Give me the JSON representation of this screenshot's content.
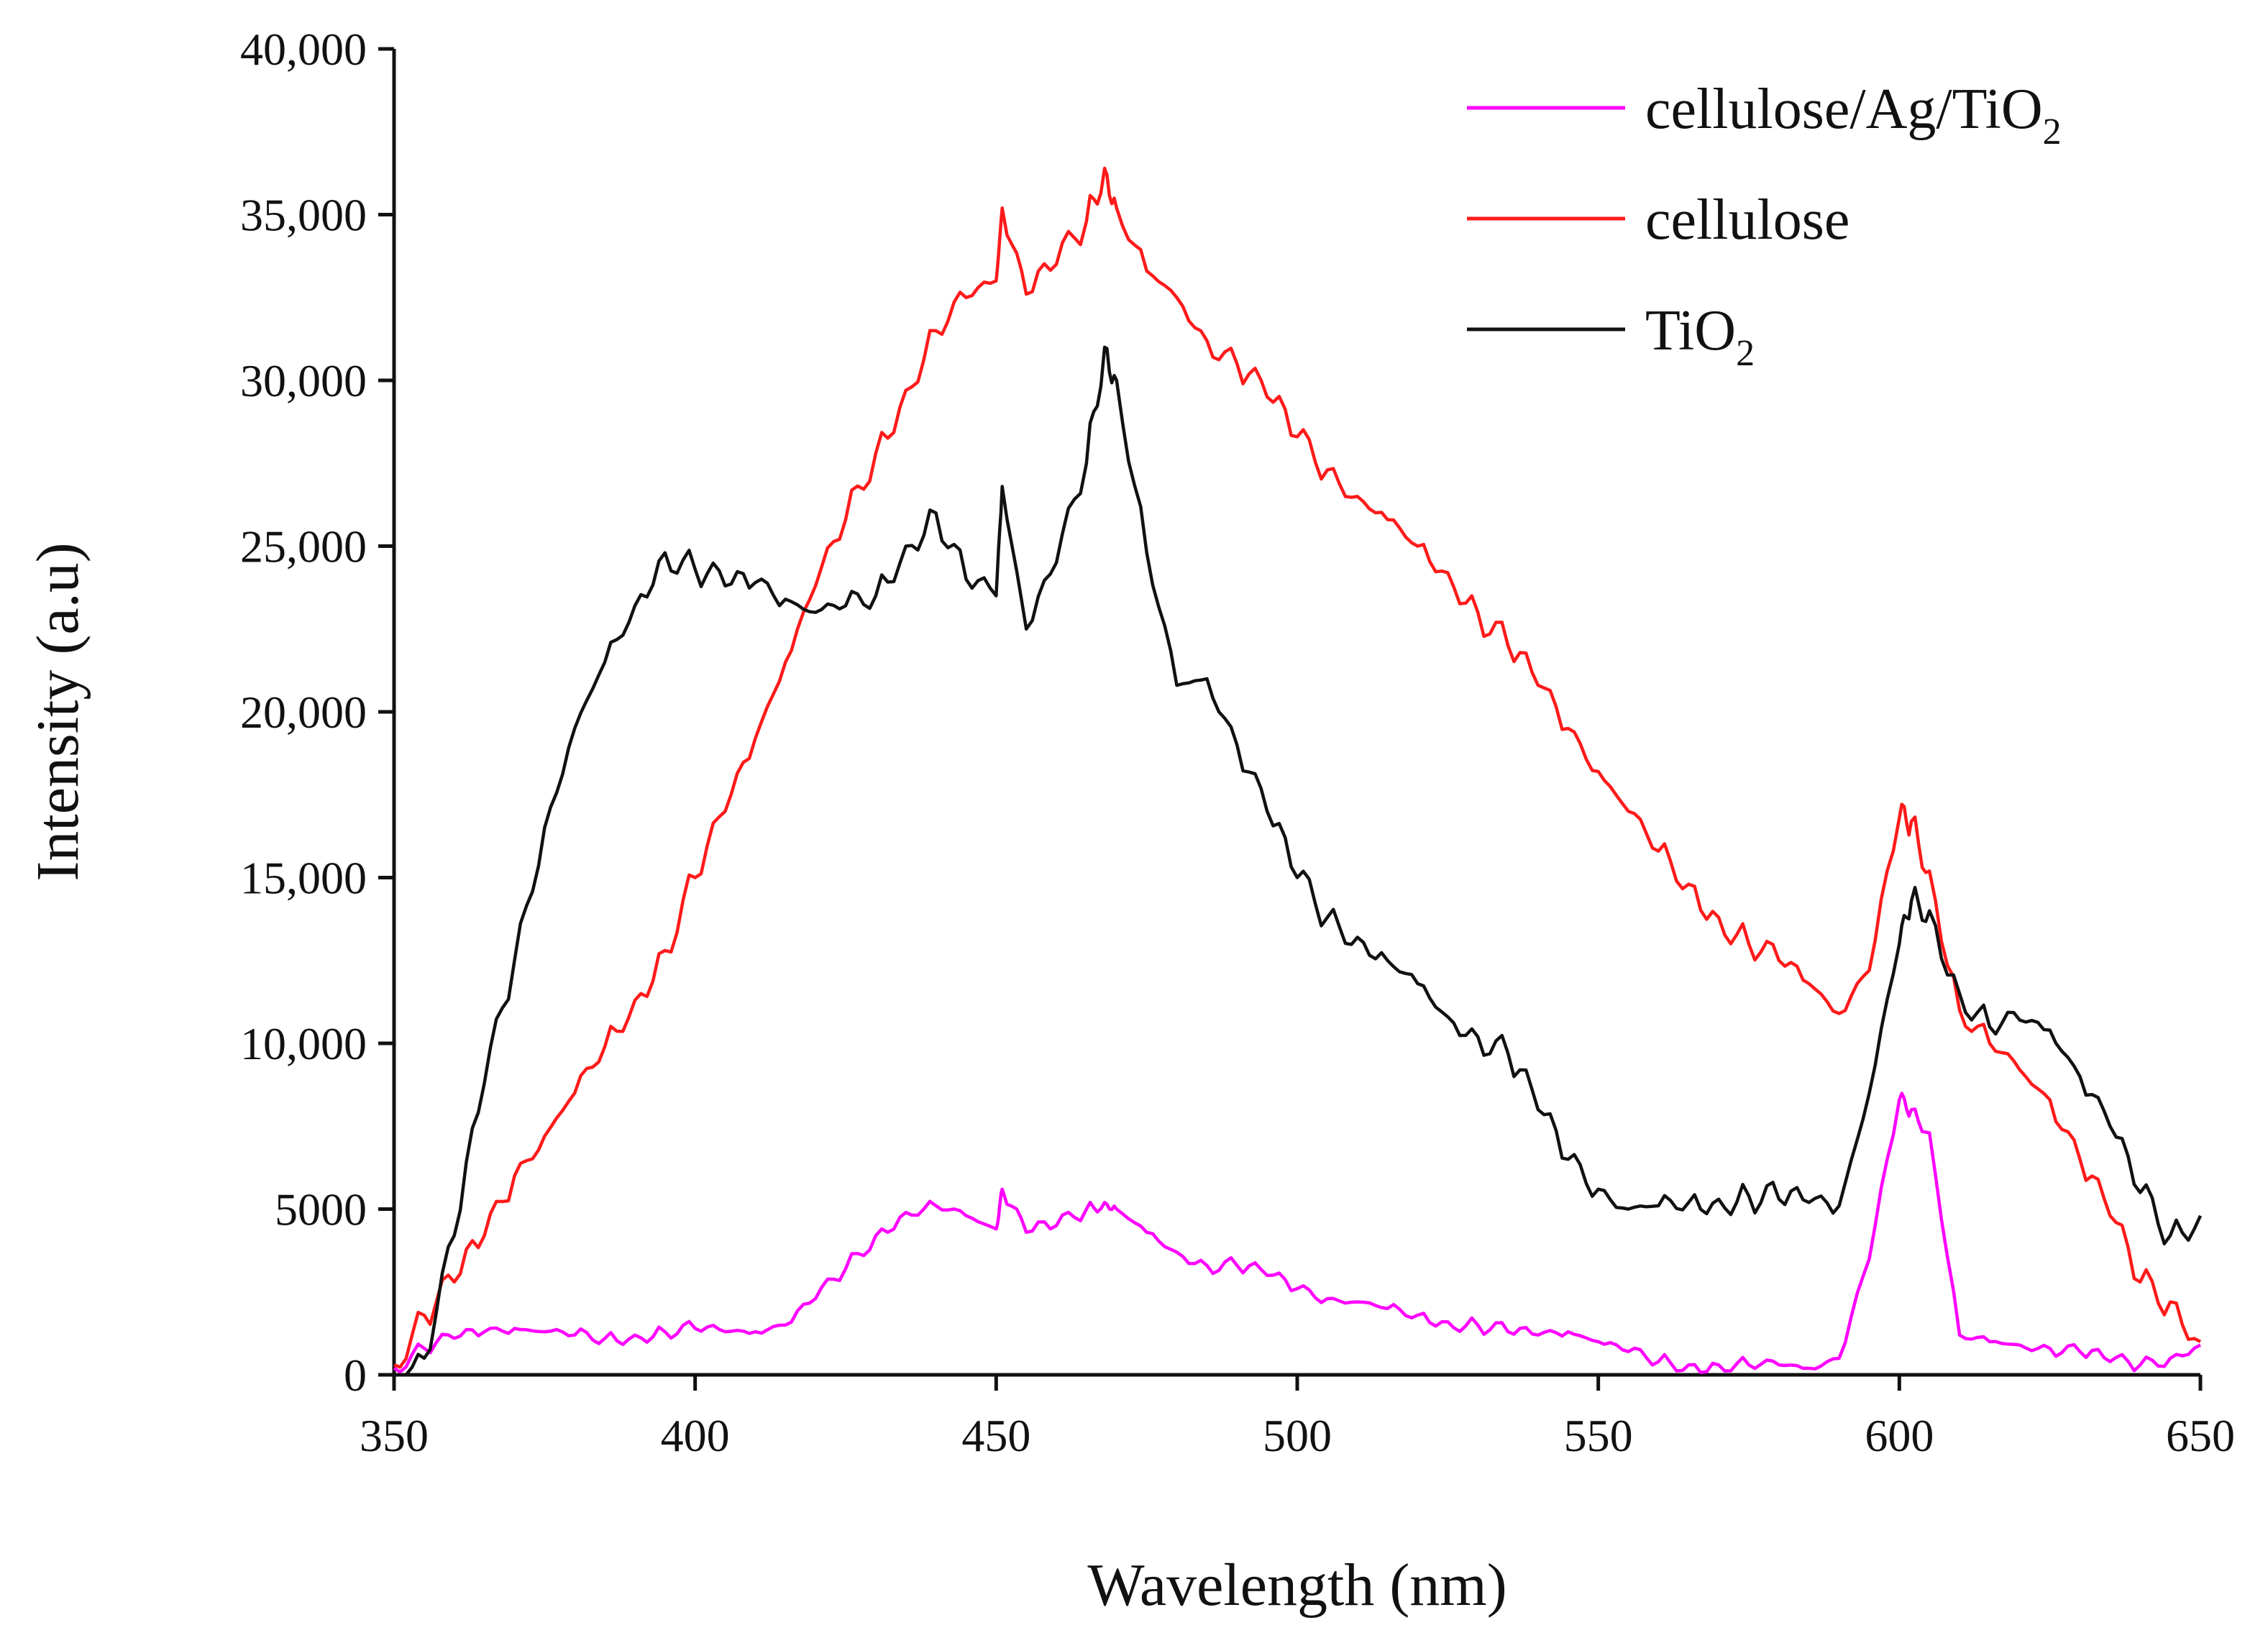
{
  "chart_data": {
    "type": "line",
    "title": "",
    "xlabel": "Wavelength (nm)",
    "ylabel": "Intensity (a.u)",
    "xlim": [
      350,
      650
    ],
    "ylim": [
      0,
      40000
    ],
    "xticks": [
      350,
      400,
      450,
      500,
      550,
      600,
      650
    ],
    "xtick_labels": [
      "350",
      "400",
      "450",
      "500",
      "550",
      "600",
      "650"
    ],
    "yticks": [
      0,
      5000,
      10000,
      15000,
      20000,
      25000,
      30000,
      35000,
      40000
    ],
    "ytick_labels": [
      "0",
      "5000",
      "10,000",
      "15,000",
      "20,000",
      "25,000",
      "30,000",
      "35,000",
      "40,000"
    ],
    "grid": false,
    "legend_position": "top-right",
    "x": [
      350,
      355,
      360,
      365,
      370,
      375,
      380,
      385,
      390,
      395,
      400,
      405,
      410,
      415,
      420,
      425,
      430,
      435,
      440,
      445,
      450,
      451,
      455,
      460,
      465,
      468,
      470,
      475,
      480,
      485,
      490,
      495,
      500,
      505,
      510,
      515,
      520,
      525,
      530,
      535,
      540,
      545,
      550,
      555,
      560,
      565,
      570,
      575,
      580,
      585,
      590,
      595,
      600,
      602,
      605,
      610,
      615,
      620,
      625,
      630,
      635,
      640,
      645,
      650
    ],
    "series": [
      {
        "name": "cellulose/Ag/TiO",
        "name_sub": "2",
        "color": "#ff00ff",
        "values": [
          200,
          800,
          1100,
          1300,
          1400,
          1300,
          1200,
          1100,
          1200,
          1300,
          1400,
          1300,
          1300,
          1500,
          2300,
          3200,
          4200,
          4900,
          5100,
          4800,
          4400,
          5600,
          4300,
          4500,
          5000,
          5200,
          5000,
          4300,
          3700,
          3300,
          3300,
          3000,
          2600,
          2300,
          2200,
          2000,
          1800,
          1600,
          1500,
          1300,
          1200,
          1300,
          1000,
          700,
          400,
          300,
          300,
          300,
          300,
          200,
          500,
          3500,
          8300,
          8000,
          7300,
          1200,
          1000,
          900,
          800,
          700,
          400,
          300,
          500,
          900
        ]
      },
      {
        "name": "cellulose",
        "name_sub": "",
        "color": "#ff1a1a",
        "values": [
          300,
          1800,
          2800,
          4200,
          6000,
          7200,
          8500,
          9900,
          11300,
          12800,
          15000,
          17000,
          19200,
          21500,
          23800,
          25800,
          27800,
          29700,
          31500,
          32500,
          33000,
          35200,
          32600,
          33500,
          34800,
          36400,
          35200,
          33300,
          32500,
          31200,
          30500,
          29500,
          28300,
          27300,
          26500,
          25800,
          25000,
          24200,
          23000,
          22000,
          20800,
          19500,
          18200,
          17000,
          15800,
          14800,
          13800,
          13000,
          12500,
          11800,
          10900,
          12200,
          16800,
          16700,
          15200,
          11000,
          10000,
          9200,
          8300,
          6500,
          4800,
          2800,
          2200,
          1000
        ]
      },
      {
        "name": "TiO",
        "name_sub": "2",
        "color": "#111111",
        "values": [
          0,
          500,
          4200,
          8800,
          12500,
          16500,
          19500,
          21500,
          23200,
          24800,
          24300,
          23800,
          23900,
          23400,
          23000,
          23200,
          23500,
          25000,
          26000,
          24000,
          23500,
          26800,
          22500,
          24500,
          27500,
          31000,
          30000,
          24800,
          20800,
          21000,
          19000,
          17000,
          15000,
          13800,
          13200,
          12500,
          11800,
          10800,
          10200,
          9700,
          8000,
          6500,
          5600,
          5000,
          5100,
          5200,
          5300,
          5400,
          5300,
          5200,
          5100,
          8500,
          13000,
          14300,
          14000,
          11500,
          10500,
          10700,
          10400,
          9000,
          7500,
          5500,
          4200,
          4800
        ]
      }
    ]
  }
}
